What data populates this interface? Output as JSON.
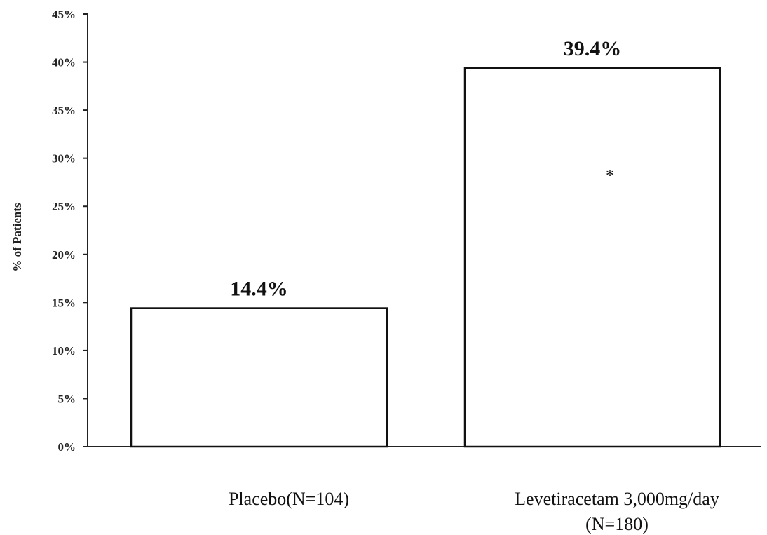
{
  "chart_data": {
    "type": "bar",
    "categories": [
      "Placebo(N=104)",
      "Levetiracetam 3,000mg/day (N=180)"
    ],
    "category_lines": [
      [
        "Placebo(N=104)"
      ],
      [
        "Levetiracetam 3,000mg/day",
        "(N=180)"
      ]
    ],
    "values": [
      14.4,
      39.4
    ],
    "value_labels": [
      "14.4%",
      "39.4%"
    ],
    "ylabel": "% of Patients",
    "ylim": [
      0,
      45
    ],
    "yticks": [
      0,
      5,
      10,
      15,
      20,
      25,
      30,
      35,
      40,
      45
    ],
    "ytick_labels": [
      "0%",
      "5%",
      "10%",
      "15%",
      "20%",
      "25%",
      "30%",
      "35%",
      "40%",
      "45%"
    ],
    "annotations": [
      {
        "category": 1,
        "text": "*",
        "y": 28.5
      }
    ],
    "grid": false,
    "legend": "none",
    "colors": {
      "bar_fill": "#ffffff",
      "bar_stroke": "#111111",
      "axis": "#222222"
    }
  }
}
